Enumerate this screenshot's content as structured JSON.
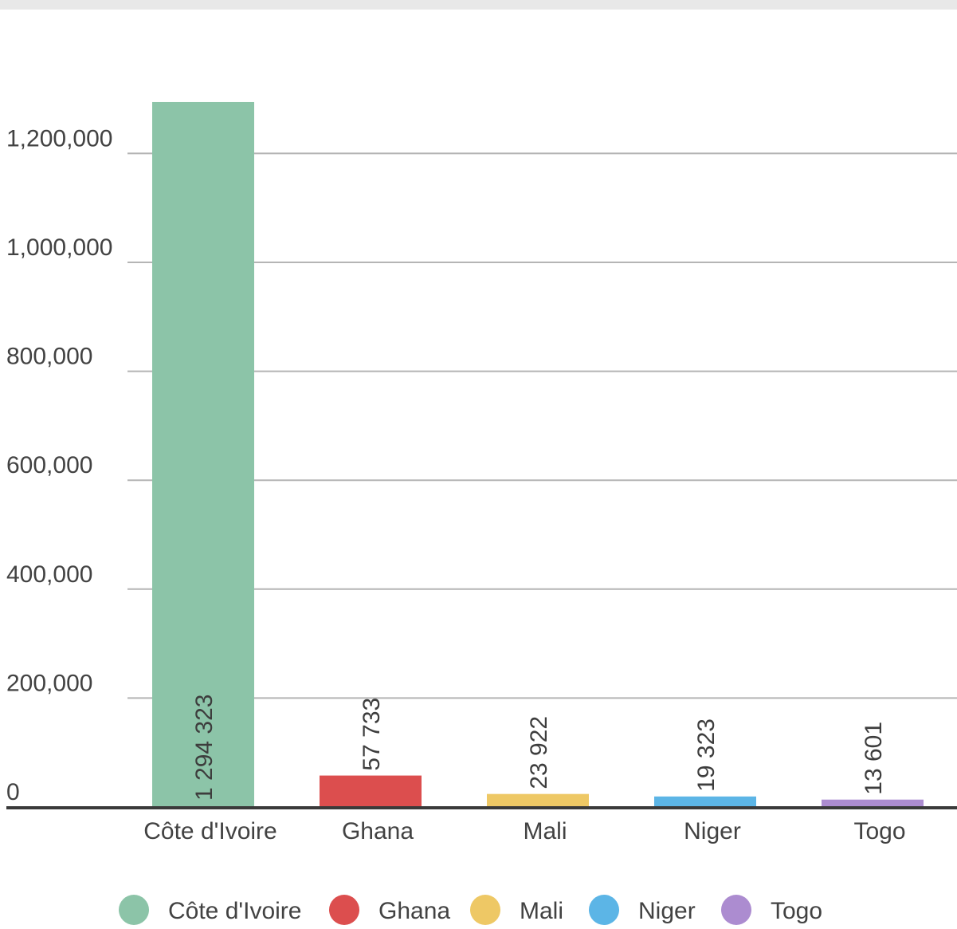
{
  "chart_data": {
    "type": "bar",
    "categories": [
      "Côte d'Ivoire",
      "Ghana",
      "Mali",
      "Niger",
      "Togo"
    ],
    "values": [
      1294323,
      57733,
      23922,
      19323,
      13601
    ],
    "value_labels": [
      "1 294 323",
      "57 733",
      "23 922",
      "19 323",
      "13 601"
    ],
    "colors": [
      "#8cc4a8",
      "#dc4e4e",
      "#eec865",
      "#5cb5e6",
      "#ac8cd0"
    ],
    "yticks": [
      0,
      200000,
      400000,
      600000,
      800000,
      1000000,
      1200000
    ],
    "ytick_labels": [
      "0",
      "200,000",
      "400,000",
      "600,000",
      "800,000",
      "1,000,000",
      "1,200,000"
    ],
    "ylim": [
      0,
      1300000
    ],
    "grid": true,
    "legend_position": "bottom",
    "title": "",
    "xlabel": "",
    "ylabel": ""
  }
}
